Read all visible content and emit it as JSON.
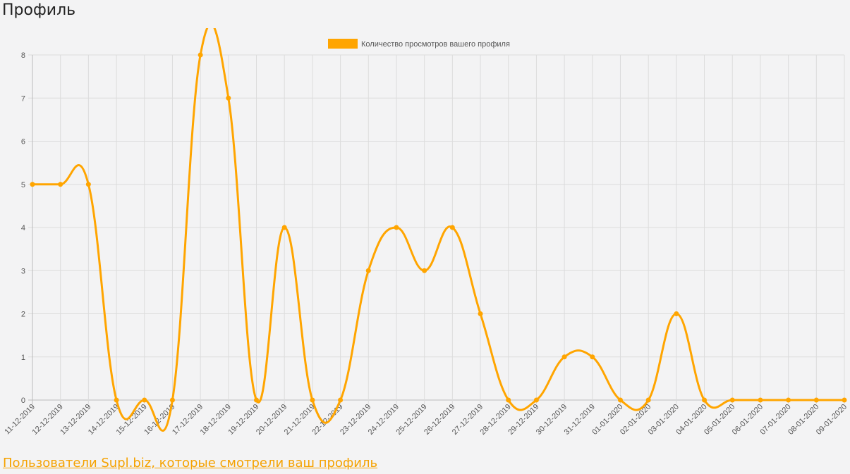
{
  "page": {
    "title": "Профиль",
    "footer_link": "Пользователи Supl.biz, которые смотрели ваш профиль"
  },
  "colors": {
    "series": "#ffa500",
    "grid": "#dcdcdc",
    "text": "#555555",
    "link": "#f5a200"
  },
  "chart_data": {
    "type": "line",
    "title": "",
    "xlabel": "",
    "ylabel": "",
    "ylim": [
      0,
      8
    ],
    "yticks": [
      0,
      1,
      2,
      3,
      4,
      5,
      6,
      7,
      8
    ],
    "grid": true,
    "legend_position": "top",
    "categories": [
      "11-12-2019",
      "12-12-2019",
      "13-12-2019",
      "14-12-2019",
      "15-12-2019",
      "16-12-2019",
      "17-12-2019",
      "18-12-2019",
      "19-12-2019",
      "20-12-2019",
      "21-12-2019",
      "22-12-2019",
      "23-12-2019",
      "24-12-2019",
      "25-12-2019",
      "26-12-2019",
      "27-12-2019",
      "28-12-2019",
      "29-12-2019",
      "30-12-2019",
      "31-12-2019",
      "01-01-2020",
      "02-01-2020",
      "03-01-2020",
      "04-01-2020",
      "05-01-2020",
      "06-01-2020",
      "07-01-2020",
      "08-01-2020",
      "09-01-2020"
    ],
    "series": [
      {
        "name": "Количество просмотров вашего профиля",
        "values": [
          5,
          5,
          5,
          0,
          0,
          0,
          8,
          7,
          0,
          4,
          0,
          0,
          3,
          4,
          3,
          4,
          2,
          0,
          0,
          1,
          1,
          0,
          0,
          2,
          0,
          0,
          0,
          0,
          0,
          0
        ]
      }
    ]
  }
}
